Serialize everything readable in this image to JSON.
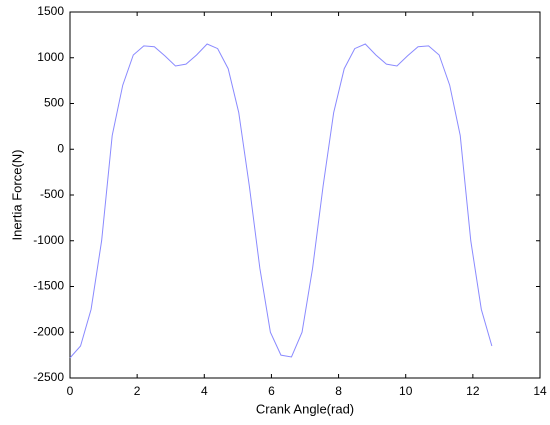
{
  "chart_data": {
    "type": "line",
    "x_label": "Crank Angle(rad)",
    "y_label": "Inertia Force(N)",
    "x": [
      0,
      0.314,
      0.628,
      0.942,
      1.257,
      1.571,
      1.885,
      2.199,
      2.513,
      2.827,
      3.142,
      3.456,
      3.77,
      4.084,
      4.398,
      4.712,
      5.027,
      5.341,
      5.655,
      5.969,
      6.283,
      6.597,
      6.912,
      7.226,
      7.54,
      7.854,
      8.168,
      8.482,
      8.796,
      9.111,
      9.425,
      9.739,
      10.053,
      10.367,
      10.681,
      10.996,
      11.31,
      11.624,
      11.938,
      12.252,
      12.566
    ],
    "series": [
      {
        "color": "#8a8aff",
        "values": [
          -2280,
          -2150,
          -1750,
          -1000,
          150,
          700,
          1030,
          1130,
          1120,
          1020,
          910,
          930,
          1030,
          1150,
          1100,
          880,
          400,
          -400,
          -1300,
          -2000,
          -2250,
          -2270,
          -2000,
          -1300,
          -400,
          400,
          880,
          1100,
          1150,
          1030,
          930,
          910,
          1020,
          1120,
          1130,
          1030,
          700,
          150,
          -1000,
          -1750,
          -2150
        ]
      }
    ],
    "xlim": [
      0,
      14
    ],
    "xticks": [
      0,
      2,
      4,
      6,
      8,
      10,
      12,
      14
    ],
    "ylim": [
      -2500,
      1500
    ],
    "yticks": [
      -2500,
      -2000,
      -1500,
      -1000,
      -500,
      0,
      500,
      1000,
      1500
    ],
    "grid": false
  }
}
